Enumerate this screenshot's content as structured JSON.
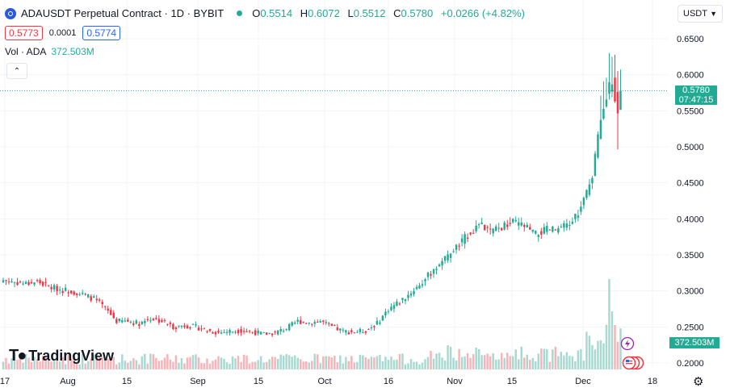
{
  "header": {
    "symbol_title": "ADAUSDT Perpetual Contract · 1D · BYBIT",
    "ohlc": {
      "o_label": "O",
      "o": "0.5514",
      "h_label": "H",
      "h": "0.6072",
      "l_label": "L",
      "l": "0.5512",
      "c_label": "C",
      "c": "0.5780",
      "change": "+0.0266 (+4.82%)"
    },
    "bid": "0.5773",
    "spread": "0.0001",
    "ask": "0.5774",
    "volume_label": "Vol · ADA",
    "volume_value": "372.503M"
  },
  "currency_selector": "USDT",
  "price_axis": {
    "ticks": [
      "0.6500",
      "0.6000",
      "0.5500",
      "0.5000",
      "0.4500",
      "0.4000",
      "0.3500",
      "0.3000",
      "0.2500",
      "0.2000"
    ],
    "last_price": "0.5780",
    "countdown": "07:47:15",
    "volume_tag": "372.503M"
  },
  "time_axis": [
    "17",
    "Aug",
    "15",
    "Sep",
    "15",
    "Oct",
    "16",
    "Nov",
    "15",
    "Dec",
    "18"
  ],
  "branding": "TradingView",
  "colors": {
    "up": "#22ab94",
    "down": "#f23645",
    "up_vol": "#a7d9d1",
    "down_vol": "#f7b3b8"
  },
  "chart_data": {
    "type": "candlestick",
    "symbol": "ADAUSDT",
    "interval": "1D",
    "ylim": [
      0.19,
      0.66
    ],
    "anchors": [
      [
        0,
        0.315
      ],
      [
        8,
        0.31
      ],
      [
        12,
        0.313
      ],
      [
        16,
        0.306
      ],
      [
        20,
        0.302
      ],
      [
        24,
        0.3
      ],
      [
        28,
        0.295
      ],
      [
        32,
        0.289
      ],
      [
        36,
        0.276
      ],
      [
        40,
        0.258
      ],
      [
        44,
        0.258
      ],
      [
        48,
        0.255
      ],
      [
        52,
        0.262
      ],
      [
        56,
        0.258
      ],
      [
        60,
        0.25
      ],
      [
        64,
        0.252
      ],
      [
        68,
        0.25
      ],
      [
        72,
        0.245
      ],
      [
        76,
        0.242
      ],
      [
        80,
        0.244
      ],
      [
        84,
        0.245
      ],
      [
        88,
        0.243
      ],
      [
        92,
        0.24
      ],
      [
        96,
        0.242
      ],
      [
        100,
        0.248
      ],
      [
        104,
        0.258
      ],
      [
        108,
        0.256
      ],
      [
        112,
        0.258
      ],
      [
        116,
        0.25
      ],
      [
        120,
        0.244
      ],
      [
        124,
        0.243
      ],
      [
        128,
        0.245
      ],
      [
        132,
        0.255
      ],
      [
        136,
        0.275
      ],
      [
        140,
        0.285
      ],
      [
        144,
        0.298
      ],
      [
        148,
        0.312
      ],
      [
        152,
        0.33
      ],
      [
        156,
        0.345
      ],
      [
        160,
        0.36
      ],
      [
        164,
        0.378
      ],
      [
        168,
        0.392
      ],
      [
        172,
        0.382
      ],
      [
        176,
        0.388
      ],
      [
        180,
        0.395
      ],
      [
        184,
        0.39
      ],
      [
        188,
        0.378
      ],
      [
        192,
        0.385
      ],
      [
        196,
        0.385
      ],
      [
        200,
        0.392
      ],
      [
        204,
        0.415
      ],
      [
        208,
        0.46
      ],
      [
        212,
        0.56
      ],
      [
        215,
        0.592
      ],
      [
        217,
        0.551
      ],
      [
        218,
        0.578
      ]
    ],
    "last_candle": {
      "open": 0.5514,
      "high": 0.6072,
      "low": 0.5512,
      "close": 0.578
    },
    "last_volume": "372.503M"
  }
}
